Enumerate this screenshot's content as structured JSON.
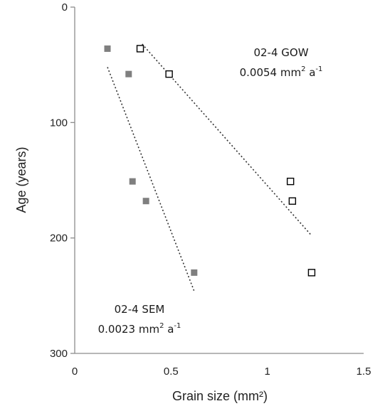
{
  "chart_data": {
    "type": "scatter",
    "title": "",
    "xlabel": "Grain size (mm²)",
    "ylabel": "Age (years)",
    "xlim": [
      0,
      1.5
    ],
    "ylim": [
      0,
      300
    ],
    "y_inverted": true,
    "x_ticks": [
      "0",
      "0.5",
      "1",
      "1.5"
    ],
    "y_ticks": [
      "0",
      "100",
      "200",
      "300"
    ],
    "grid": false,
    "series": [
      {
        "name": "02-4 SEM",
        "marker": "filled-square",
        "color": "#7f7f7f",
        "points": [
          {
            "x": 0.17,
            "y": 36
          },
          {
            "x": 0.28,
            "y": 58
          },
          {
            "x": 0.3,
            "y": 151
          },
          {
            "x": 0.37,
            "y": 168
          },
          {
            "x": 0.62,
            "y": 230
          }
        ],
        "trendline": {
          "style": "dotted",
          "from": {
            "x": 0.17,
            "y": 52
          },
          "to": {
            "x": 0.62,
            "y": 246
          }
        }
      },
      {
        "name": "02-4 GOW",
        "marker": "open-square",
        "color": "#000000",
        "points": [
          {
            "x": 0.34,
            "y": 36
          },
          {
            "x": 0.49,
            "y": 58
          },
          {
            "x": 1.12,
            "y": 151
          },
          {
            "x": 1.13,
            "y": 168
          },
          {
            "x": 1.23,
            "y": 230
          }
        ],
        "trendline": {
          "style": "dotted",
          "from": {
            "x": 0.35,
            "y": 32
          },
          "to": {
            "x": 1.23,
            "y": 198
          }
        }
      }
    ],
    "annotations": [
      {
        "label": "02-4 GOW",
        "rate_value": "0.0054 mm",
        "rate_exp": "2",
        "rate_unit": " a",
        "rate_unit_exp": "-1"
      },
      {
        "label": "02-4 SEM",
        "rate_value": "0.0023 mm",
        "rate_exp": "2",
        "rate_unit": " a",
        "rate_unit_exp": "-1"
      }
    ]
  }
}
